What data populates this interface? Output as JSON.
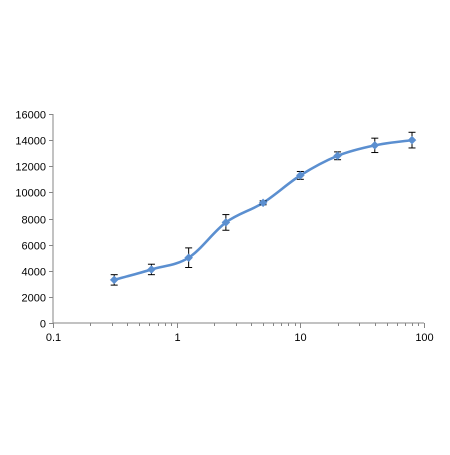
{
  "chart_data": {
    "type": "line",
    "x_scale": "log",
    "xlim": [
      0.1,
      100
    ],
    "ylim": [
      0,
      16000
    ],
    "x_ticks": [
      {
        "value": 0.1,
        "label": "0.1"
      },
      {
        "value": 1,
        "label": "1"
      },
      {
        "value": 10,
        "label": "10"
      },
      {
        "value": 100,
        "label": "100"
      }
    ],
    "y_ticks": [
      {
        "value": 0,
        "label": "0"
      },
      {
        "value": 2000,
        "label": "2000"
      },
      {
        "value": 4000,
        "label": "4000"
      },
      {
        "value": 6000,
        "label": "6000"
      },
      {
        "value": 8000,
        "label": "8000"
      },
      {
        "value": 10000,
        "label": "10000"
      },
      {
        "value": 12000,
        "label": "12000"
      },
      {
        "value": 14000,
        "label": "14000"
      },
      {
        "value": 16000,
        "label": "16000"
      }
    ],
    "grid": false,
    "legend": "none",
    "series": [
      {
        "color": "#5b8fd0",
        "x": [
          0.3125,
          0.625,
          1.25,
          2.5,
          5,
          10,
          20,
          40,
          80
        ],
        "y": [
          3300,
          4100,
          5000,
          7700,
          9200,
          11300,
          12800,
          13600,
          14000
        ],
        "err": [
          400,
          400,
          750,
          600,
          150,
          300,
          300,
          550,
          600
        ]
      }
    ]
  }
}
